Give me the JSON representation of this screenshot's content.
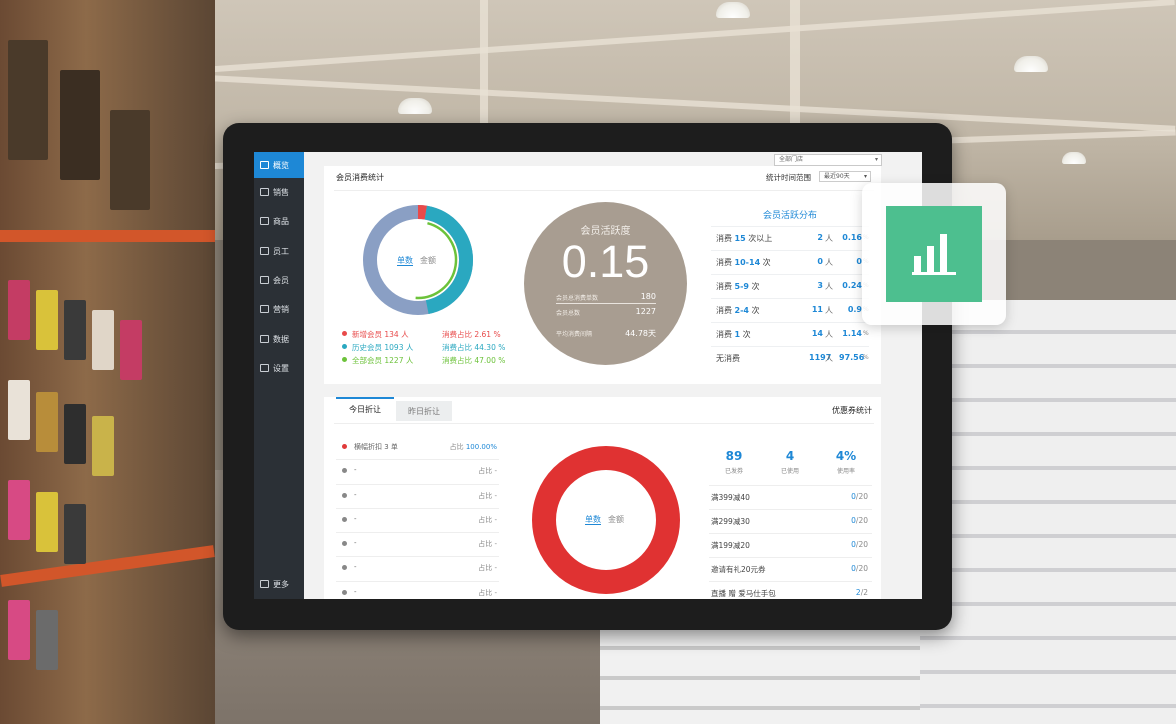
{
  "sidebar": {
    "items": [
      {
        "label": "概览",
        "active": true
      },
      {
        "label": "销售"
      },
      {
        "label": "商品"
      },
      {
        "label": "员工"
      },
      {
        "label": "会员"
      },
      {
        "label": "营销"
      },
      {
        "label": "数据"
      },
      {
        "label": "设置"
      }
    ],
    "more": "更多"
  },
  "header": {
    "store_select": "全部门店"
  },
  "member_stats": {
    "title": "会员消费统计",
    "range_label": "统计时间范围",
    "range_value": "最近90天",
    "toggle_on": "单数",
    "toggle_off": "金额",
    "donut": [
      {
        "name": "新增会员",
        "share": 0.0261,
        "color": "#e84a4a"
      },
      {
        "name": "历史会员",
        "share": 0.443,
        "color": "#2aa8c0"
      },
      {
        "name": "全部会员",
        "share": 0.47,
        "color": "#6cc23a"
      }
    ],
    "legend": [
      {
        "label": "新增会员 134 人",
        "pct": "消费占比 2.61 %",
        "color": "#e84a4a"
      },
      {
        "label": "历史会员 1093 人",
        "pct": "消费占比 44.30 %",
        "color": "#2aa8c0"
      },
      {
        "label": "全部会员 1227 人",
        "pct": "消费占比 47.00 %",
        "color": "#6cc23a"
      }
    ]
  },
  "activity": {
    "title": "会员活跃度",
    "value": "0.15",
    "rows": [
      {
        "label": "会员总消费单数",
        "value": "180"
      },
      {
        "label": "会员总数",
        "value": "1227"
      },
      {
        "label": "平均消费间隔",
        "value": "44.78天"
      }
    ]
  },
  "distribution": {
    "title": "会员活跃分布",
    "rows": [
      {
        "pre": "消费 ",
        "num": "15",
        "post": " 次以上",
        "count": "2",
        "unit": "人",
        "pct": "0.16",
        "pu": "%"
      },
      {
        "pre": "消费 ",
        "num": "10-14",
        "post": " 次",
        "count": "0",
        "unit": "人",
        "pct": "0",
        "pu": "%"
      },
      {
        "pre": "消费 ",
        "num": "5-9",
        "post": " 次",
        "count": "3",
        "unit": "人",
        "pct": "0.24",
        "pu": "%"
      },
      {
        "pre": "消费 ",
        "num": "2-4",
        "post": " 次",
        "count": "11",
        "unit": "人",
        "pct": "0.9",
        "pu": "%"
      },
      {
        "pre": "消费 ",
        "num": "1",
        "post": " 次",
        "count": "14",
        "unit": "人",
        "pct": "1.14",
        "pu": "%"
      },
      {
        "pre": "无消费",
        "num": "",
        "post": "",
        "count": "1197",
        "unit": "人",
        "pct": "97.56",
        "pu": "%"
      }
    ]
  },
  "discount": {
    "tabs": [
      {
        "label": "今日折让"
      },
      {
        "label": "昨日折让"
      }
    ],
    "toggle_on": "单数",
    "toggle_off": "金额",
    "rows": [
      {
        "name": "横幅折扣 3 单",
        "ratio_label": "占比",
        "ratio": "100.00%",
        "color": "#e03a3a"
      },
      {
        "name": "-",
        "ratio_label": "占比",
        "ratio": "-",
        "color": "#888888"
      },
      {
        "name": "-",
        "ratio_label": "占比",
        "ratio": "-",
        "color": "#888888"
      },
      {
        "name": "-",
        "ratio_label": "占比",
        "ratio": "-",
        "color": "#888888"
      },
      {
        "name": "-",
        "ratio_label": "占比",
        "ratio": "-",
        "color": "#888888"
      },
      {
        "name": "-",
        "ratio_label": "占比",
        "ratio": "-",
        "color": "#888888"
      },
      {
        "name": "-",
        "ratio_label": "占比",
        "ratio": "-",
        "color": "#888888"
      }
    ],
    "donut_color": "#e03232"
  },
  "coupons": {
    "title": "优惠券统计",
    "stats": [
      {
        "value": "89",
        "label": "已发券"
      },
      {
        "value": "4",
        "label": "已使用"
      },
      {
        "value": "4%",
        "label": "使用率"
      }
    ],
    "rows": [
      {
        "name": "满399减40",
        "used": "0",
        "total": "/20"
      },
      {
        "name": "满299减30",
        "used": "0",
        "total": "/20"
      },
      {
        "name": "满199减20",
        "used": "0",
        "total": "/20"
      },
      {
        "name": "邀请有礼20元券",
        "used": "0",
        "total": "/20"
      },
      {
        "name": "直播 赠 爱马仕手包",
        "used": "2",
        "total": "/2"
      }
    ]
  },
  "badge": {
    "icon": "bar-chart-icon",
    "color": "#4dbf8f"
  }
}
